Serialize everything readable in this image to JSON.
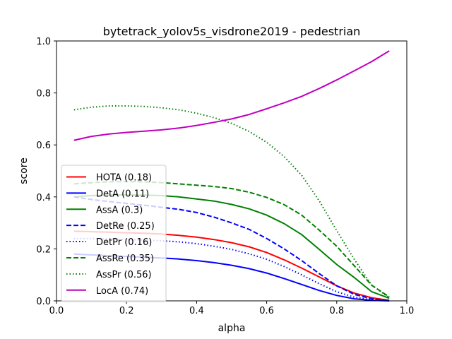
{
  "chart_data": {
    "type": "line",
    "title": "bytetrack_yolov5s_visdrone2019 - pedestrian",
    "xlabel": "alpha",
    "ylabel": "score",
    "xlim": [
      0.0,
      1.0
    ],
    "ylim": [
      0.0,
      1.0
    ],
    "xticks": [
      "0.0",
      "0.2",
      "0.4",
      "0.6",
      "0.8",
      "1.0"
    ],
    "yticks": [
      "0.0",
      "0.2",
      "0.4",
      "0.6",
      "0.8",
      "1.0"
    ],
    "grid": false,
    "legend_position": "lower-left",
    "x": [
      0.05,
      0.1,
      0.15,
      0.2,
      0.25,
      0.3,
      0.35,
      0.4,
      0.45,
      0.5,
      0.55,
      0.6,
      0.65,
      0.7,
      0.75,
      0.8,
      0.85,
      0.9,
      0.95
    ],
    "series": [
      {
        "name": "HOTA (0.18)",
        "color": "#ff0000",
        "dash": "solid",
        "values": [
          0.268,
          0.266,
          0.264,
          0.262,
          0.26,
          0.257,
          0.252,
          0.245,
          0.236,
          0.224,
          0.208,
          0.186,
          0.158,
          0.126,
          0.092,
          0.058,
          0.03,
          0.012,
          0.002
        ]
      },
      {
        "name": "DetA (0.11)",
        "color": "#0000ff",
        "dash": "solid",
        "values": [
          0.18,
          0.177,
          0.174,
          0.171,
          0.168,
          0.165,
          0.161,
          0.155,
          0.147,
          0.137,
          0.124,
          0.107,
          0.086,
          0.063,
          0.04,
          0.021,
          0.008,
          0.002,
          0.0
        ]
      },
      {
        "name": "AssA (0.3)",
        "color": "#008000",
        "dash": "solid",
        "values": [
          0.4,
          0.405,
          0.407,
          0.408,
          0.407,
          0.405,
          0.4,
          0.392,
          0.384,
          0.371,
          0.354,
          0.33,
          0.297,
          0.255,
          0.198,
          0.14,
          0.09,
          0.035,
          0.01
        ]
      },
      {
        "name": "DetRe (0.25)",
        "color": "#0000ff",
        "dash": "dashed",
        "values": [
          0.4,
          0.39,
          0.382,
          0.375,
          0.368,
          0.36,
          0.352,
          0.34,
          0.322,
          0.3,
          0.275,
          0.24,
          0.2,
          0.155,
          0.105,
          0.058,
          0.025,
          0.008,
          0.001
        ]
      },
      {
        "name": "DetPr (0.16)",
        "color": "#0000ff",
        "dash": "dotted",
        "values": [
          0.24,
          0.24,
          0.238,
          0.236,
          0.234,
          0.231,
          0.227,
          0.22,
          0.21,
          0.198,
          0.181,
          0.16,
          0.132,
          0.1,
          0.066,
          0.035,
          0.014,
          0.004,
          0.001
        ]
      },
      {
        "name": "AssRe (0.35)",
        "color": "#008000",
        "dash": "dashed",
        "values": [
          0.45,
          0.455,
          0.458,
          0.459,
          0.458,
          0.455,
          0.45,
          0.445,
          0.44,
          0.432,
          0.418,
          0.398,
          0.37,
          0.33,
          0.272,
          0.21,
          0.135,
          0.06,
          0.015
        ]
      },
      {
        "name": "AssPr (0.56)",
        "color": "#008000",
        "dash": "dotted",
        "values": [
          0.735,
          0.745,
          0.75,
          0.75,
          0.748,
          0.743,
          0.735,
          0.722,
          0.705,
          0.683,
          0.652,
          0.61,
          0.555,
          0.483,
          0.385,
          0.27,
          0.16,
          0.06,
          0.012
        ]
      },
      {
        "name": "LocA (0.74)",
        "color": "#bf00bf",
        "dash": "solid",
        "values": [
          0.618,
          0.633,
          0.642,
          0.648,
          0.653,
          0.658,
          0.665,
          0.675,
          0.687,
          0.7,
          0.717,
          0.739,
          0.762,
          0.787,
          0.817,
          0.85,
          0.885,
          0.921,
          0.962
        ]
      }
    ]
  }
}
